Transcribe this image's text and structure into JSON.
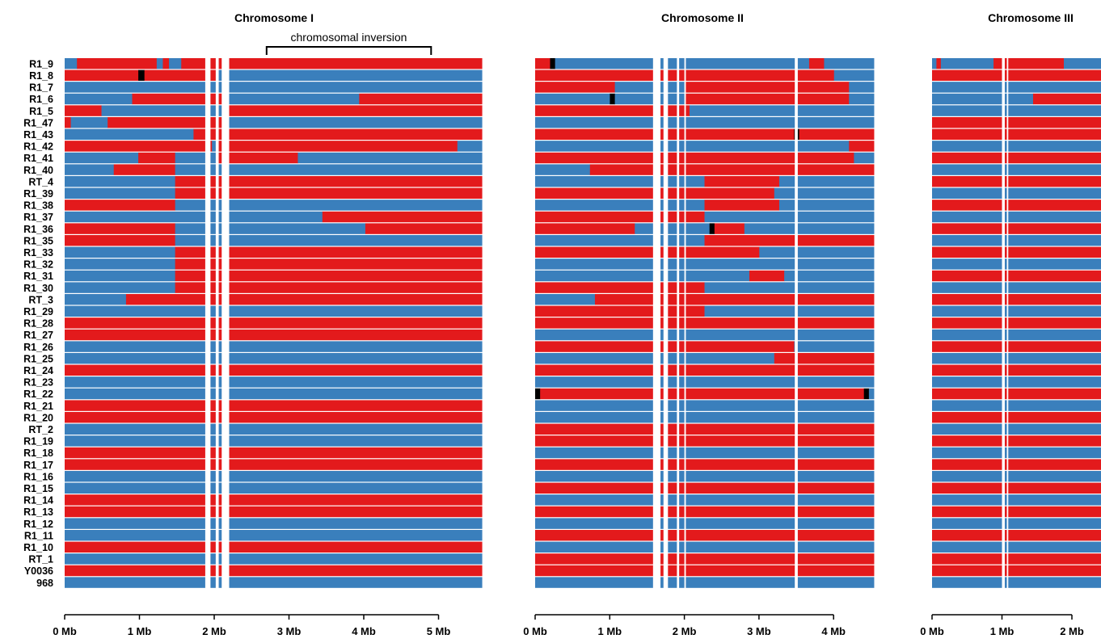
{
  "colors": {
    "parent_a": "#e31a1c",
    "parent_b": "#3a7fbc",
    "missing": "#000000",
    "background": "#ffffff"
  },
  "chart_data": {
    "type": "heatmap",
    "samples": [
      "R1_9",
      "R1_8",
      "R1_7",
      "R1_6",
      "R1_5",
      "R1_47",
      "R1_43",
      "R1_42",
      "R1_41",
      "R1_40",
      "RT_4",
      "R1_39",
      "R1_38",
      "R1_37",
      "R1_36",
      "R1_35",
      "R1_33",
      "R1_32",
      "R1_31",
      "R1_30",
      "RT_3",
      "R1_29",
      "R1_28",
      "R1_27",
      "R1_26",
      "R1_25",
      "R1_24",
      "R1_23",
      "R1_22",
      "R1_21",
      "R1_20",
      "RT_2",
      "R1_19",
      "R1_18",
      "R1_17",
      "R1_16",
      "R1_15",
      "R1_14",
      "R1_13",
      "R1_12",
      "R1_11",
      "R1_10",
      "RT_1",
      "Y0036",
      "968"
    ],
    "genotype_codes": {
      "R": "parent_a",
      "B": "parent_b",
      "K": "missing"
    },
    "panels": [
      {
        "title": "Chromosome I",
        "length_mb": 5.58,
        "xlim_mb": [
          0,
          5.58
        ],
        "ticks_mb": [
          0,
          1,
          2,
          3,
          4,
          5
        ],
        "tick_labels": [
          "0 Mb",
          "1 Mb",
          "2 Mb",
          "3 Mb",
          "4 Mb",
          "5 Mb"
        ],
        "annotation": {
          "label": "chromosomal inversion",
          "start_mb": 2.7,
          "end_mb": 4.9
        },
        "gaps_mb": [
          [
            1.88,
            1.95
          ],
          [
            2.02,
            2.06
          ],
          [
            2.1,
            2.2
          ]
        ],
        "blocks": [
          "BBRRRRRRRRRRRRRBRBBRRRRRRRRRRRRRRRRRRRRRRRRRRRRRRRRRRRRRRRRRRRRRRRRR",
          "RRRRRRRRRRRRKRRRRRRRRRRRRBBBBBBBBBBBBBBBBBBBBBBBBBBBBBBBBBBBBBBBBBBB",
          "BBBBBBBBBBBBBBBBBBBBBBBBBBBBBBBBBBBBBBBBBBBBBBBBBBBBBBBBBBBBBBBBBBBB",
          "BBBBBBBBBBBRRRRRRRRRRRRRRRBBBBBBBBBBBBBBBBBBBBBBRRRRRRRRRRRRRRRRRRRR",
          "RRRRRRBBBBBBBBBBBBBBBBBBBBRRRRRRRRRRRRRRRRRRRRRRRRRRRRRRRRRRRRRRRRRR",
          "RBBBBBBRRRRRRRRRRRRRRRRRRRBBBBBBBBBBBBBBBBBBBBBBBBBBBBBBBBBBBBBBBBBB",
          "BBBBBBBBBBBBBBBBBBBBBRRRRRRRRRRRRRRRRRRRRRRRRRRRRRRRRRRRRRRRRRRRRRRR",
          "RRRRRRRRRRRRRRRRRRRRRRRRBRRRRRRRRRRRRRRRRRRRRRRRRRRRRRRRRRRRRRRRBBBB",
          "BBBBBBBBBBBBRRRRRRBBBBBBBRRRRRRRRRRRRRBBBBBBBBBBBBBBBBBBBBBBBBBBBBBB",
          "BBBBBBBBRRRRRRRRRRBBBBBBBBBBBBBBBBBBBBBBBBBBBBBBBBBBBBBBBBBBBBBBBBBB",
          "BBBBBBBBBBBBBBBBBBRRRRRRRRRRRRRRRRRRRRRRRRRRRRRRRRRRRRRRRRRRRRRRRRRR",
          "BBBBBBBBBBBBBBBBBBRRRRRRRRRRRRRRRRRRRRRRRRRRRRRRRRRRRRRRRRRRRRRRRRRR",
          "RRRRRRRRRRRRRRRRRRBBBBBBBBBBBBBBBBBBBBBBBBBBBBBBBBBBBBBBBBBBBBBBBBBB",
          "BBBBBBBBBBBBBBBBBBBBBBBBBBBBBBBBBBBBBBBBBBRRRRRRRRRRRRRRRRRRRRRRRRRR",
          "RRRRRRRRRRRRRRRRRRBBBBBBBBBBBBBBBBBBBBBBBBBBBBBBBRRRRRRRRRRRRRRRRRRR",
          "RRRRRRRRRRRRRRRRRRBBBBBBBBBBBBBBBBBBBBBBBBBBBBBBBBBBBBBBBBBBBBBBBBBB",
          "BBBBBBBBBBBBBBBBBBRRRRRRRRRRRRRRRRRRRRRRRRRRRRRRRRRRRRRRRRRRRRRRRRRR",
          "BBBBBBBBBBBBBBBBBBRRRRRRRRRRRRRRRRRRRRRRRRRRRRRRRRRRRRRRRRRRRRRRRRRR",
          "BBBBBBBBBBBBBBBBBBRRRRRRRRRRRRRRRRRRRRRRRRRRRRRRRRRRRRRRRRRRRRRRRRRR",
          "BBBBBBBBBBBBBBBBBBRRRRRRRRRRRRRRRRRRRRRRRRRRRRRRRRRRRRRRRRRRRRRRRRRR",
          "BBBBBBBBBBRRRRRRRRRRRRRRRRRRRRRRRRRRRRRRRRRRRRRRRRRRRRRRRRRRRRRRRRRR",
          "BBBBBBBBBBBBBBBBBBBBBBBBBBBBBBBBBBBBBBBBBBBBBBBBBBBBBBBBBBBBBBBBBBBB",
          "RRRRRRRRRRRRRRRRRRRRRRRRRRRRRRRRRRRRRRRRRRRRRRRRRRRRRRRRRRRRRRRRRRRR",
          "RRRRRRRRRRRRRRRRRRRRRRRRRRRRRRRRRRRRRRRRRRRRRRRRRRRRRRRRRRRRRRRRRRRR",
          "BBBBBBBBBBBBBBBBBBBBBBBBBBBBBBBBBBBBBBBBBBBBBBBBBBBBBBBBBBBBBBBBBBBB",
          "BBBBBBBBBBBBBBBBBBBBBBBBBBBBBBBBBBBBBBBBBBBBBBBBBBBBBBBBBBBBBBBBBBBB",
          "RRRRRRRRRRRRRRRRRRRRRRRRRRRRRRRRRRRRRRRRRRRRRRRRRRRRRRRRRRRRRRRRRRRR",
          "BBBBBBBBBBBBBBBBBBBBBBBBBBBBBBBBBBBBBBBBBBBBBBBBBBBBBBBBBBBBBBBBBBBB",
          "BBBBBBBBBBBBBBBBBBBBBBBBBBBBBBBBBBBBBBBBBBBBBBBBBBBBBBBBBBBBBBBBBBBB",
          "RRRRRRRRRRRRRRRRRRRRRRRRRRRRRRRRRRRRRRRRRRRRRRRRRRRRRRRRRRRRRRRRRRRR",
          "RRRRRRRRRRRRRRRRRRRRRRRRRRRRRRRRRRRRRRRRRRRRRRRRRRRRRRRRRRRRRRRRRRRR",
          "BBBBBBBBBBBBBBBBBBBBBBBBBBBBBBBBBBBBBBBBBBBBBBBBBBBBBBBBBBBBBBBBBBBB",
          "BBBBBBBBBBBBBBBBBBBBBBBBBBBBBBBBBBBBBBBBBBBBBBBBBBBBBBBBBBBBBBBBBBBB",
          "RRRRRRRRRRRRRRRRRRRRRRRRRRRRRRRRRRRRRRRRRRRRRRRRRRRRRRRRRRRRRRRRRRRR",
          "RRRRRRRRRRRRRRRRRRRRRRRRRRRRRRRRRRRRRRRRRRRRRRRRRRRRRRRRRRRRRRRRRRRR",
          "BBBBBBBBBBBBBBBBBBBBBBBBBBBBBBBBBBBBBBBBBBBBBBBBBBBBBBBBBBBBBBBBBBBB",
          "BBBBBBBBBBBBBBBBBBBBBBBBBBBBBBBBBBBBBBBBBBBBBBBBBBBBBBBBBBBBBBBBBBBB",
          "RRRRRRRRRRRRRRRRRRRRRRRRRRRRRRRRRRRRRRRRRRRRRRRRRRRRRRRRRRRRRRRRRRRR",
          "RRRRRRRRRRRRRRRRRRRRRRRRRRRRRRRRRRRRRRRRRRRRRRRRRRRRRRRRRRRRRRRRRRRR",
          "BBBBBBBBBBBBBBBBBBBBBBBBBBBBBBBBBBBBBBBBBBBBBBBBBBBBBBBBBBBBBBBBBBBB",
          "BBBBBBBBBBBBBBBBBBBBBBBBBBBBBBBBBBBBBBBBBBBBBBBBBBBBBBBBBBBBBBBBBBBB",
          "RRRRRRRRRRRRRRRRRRRRRRRRRRRRRRRRRRRRRRRRRRRRRRRRRRRRRRRRRRRRRRRRRRRR",
          "BBBBBBBBBBBBBBBBBBBBBBBBBBBBBBBBBBBBBBBBBBBBBBBBBBBBBBBBBBBBBBBBBBBB",
          "RRRRRRRRRRRRRRRRRRRRRRRRRRRRRRRRRRRRRRRRRRRRRRRRRRRRRRRRRRRRRRRRRRRR",
          "BBBBBBBBBBBBBBBBBBBBBBBBBBBBBBBBBBBBBBBBBBBBBBBBBBBBBBBBBBBBBBBBBBBB"
        ]
      },
      {
        "title": "Chromosome II",
        "length_mb": 4.54,
        "xlim_mb": [
          0,
          4.54
        ],
        "ticks_mb": [
          0,
          1,
          2,
          3,
          4
        ],
        "tick_labels": [
          "0 Mb",
          "1 Mb",
          "2 Mb",
          "3 Mb",
          "4 Mb"
        ],
        "gaps_mb": [
          [
            1.58,
            1.68
          ],
          [
            1.72,
            1.78
          ],
          [
            1.9,
            1.93
          ],
          [
            2.0,
            2.02
          ],
          [
            3.48,
            3.52
          ]
        ],
        "blocks": [
          "RRRKBBBBBBBBBBBBBBBBBBBBBBBBBBBBBBBBBBBBBBBBBBBBBBBBBBBRRRBBBBBBBBBB",
          "RRRRRRRRRRRRRRRRRRRRRRRRRRRRRRRRRRRRRRRRRRRRRRRRRRRRRRRRRRRRBBBBBBBB",
          "RRRRRRRRRRRRRRRRBBBBBBBBBBBBBBRRRRRRRRRRRRRRRRRRRRRRRRRRRRRRRRRBBBBB",
          "BBBBBBBBBBBBBBBKBBBBBBBBBBBBBBRRRRRRRRRRRRRRRRRRRRRRRRRRRRRRRRRBBBBB",
          "RRRRRRRRRRRRRRRRRRRRRRRRRRRRRRRBBBBBBBBBBBBBBBBBBBBBBBBBBBBBBBBBBBBB",
          "BBBBBBBBBBBBBBBBBBBBBBBBBBBBBBBBBBBBBBBBBBBBBBBBBBBBBBBBBBBBBBBBBBBB",
          "RRRRRRRRRRRRRRRRRRRRRRRRRRRRRRRRRRRRRRRRRRRRRRRRRRRRKRRRRRRRRRRRRRRR",
          "BBBBBBBBBBBBBBBBBBBBBBBBBBBBBBBBBBBBBBBBBBBBBBBBBBBBBBBBBBBBBBBRRRRR",
          "RRRRRRRRRRRRRRRRRRRRRRRRRRRRRRRRRRRRRRRRRRRRRRRRRRRRRRRRRRRRRRRRBBBB",
          "BBBBBBBBBBBRRRRRRRRRRRRRRRRRRRRRRRRRRRRRRRRRRRRRRRRRRRRRRRRRRRRRRRRR",
          "BBBBBBBBBBBBBBBBBBBBBBBBBBBBBBBBBBRRRRRRRRRRRRRRRBBBBBBBBBBBBBBBBBBB",
          "RRRRRRRRRRRRRRRRRRRRRRRRRRRRRRRRRRRRRRRRRRRRRRRRBBBBBBBBBBBBBBBBBBBB",
          "BBBBBBBBBBBBBBBBBBBBBBBBBBBBBBBBBBRRRRRRRRRRRRRRRBBBBBBBBBBBBBBBBBBB",
          "RRRRRRRRRRRRRRRRRRRRRRRRRRRRRRRRRRBBBBBBBBBBBBBBBBBBBBBBBBBBBBBBBBBB",
          "RRRRRRRRRRRRRRRRRRRRBBBBBBBBBBBBBBBKRRRRRRBBBBBBBBBBBBBBBBBBBBBBBBBB",
          "BBBBBBBBBBBBBBBBBBBBBBBBBBBBBBBBBBRRRRRRRRRRRRRRRRRRRRRRRRRRRRRRRRRR",
          "RRRRRRRRRRRRRRRRRRRRRRRRRRRRRRRRRRRRRRRRRRRRRBBBBBBBBBBBBBBBBBBBBBBB",
          "BBBBBBBBBBBBBBBBBBBBBBBBBBBBBBBBBBBBBBBBBBBBBBBBBBBBBBBBBBBBBBBBBBBB",
          "BBBBBBBBBBBBBBBBBBBBBBBBBBBBBBBBBBBBBBBBBBBRRRRRRRBBBBBBBBBBBBBBBBBB",
          "RRRRRRRRRRRRRRRRRRRRRRRRRRRRRRRRRRBBBBBBBBBBBBBBBBBBBBBBBBBBBBBBBBBB",
          "BBBBBBBBBBBBRRRRRRRRRRRRRRRRRRRRRRRRRRRRRRRRRRRRRRRRRRRRRRRRRRRRRRRR",
          "RRRRRRRRRRRRRRRRRRRRRRRRRRRRRRRRRRBBBBBBBBBBBBBBBBBBBBBBBBBBBBBBBBBB",
          "RRRRRRRRRRRRRRRRRRRRRRRRRRRRRRRRRRRRRRRRRRRRRRRRRRRRRRRRRRRRRRRRRRRR",
          "BBBBBBBBBBBBBBBBBBBBBBBBBBBBBBBBBBBBBBBBBBBBBBBBBBBBBBBBBBBBBBBBBBBB",
          "RRRRRRRRRRRRRRRRRRRRRRRRRRRRRRRRRRRRRRRRRRRRRRRRRRRRBBBBBBBBBBBBBBBB",
          "BBBBBBBBBBBBBBBBBBBBBBBBBBBBBBBBBBBBBBBBBBBBBBBBRRRRRRRRRRRRRRRRRRRR",
          "RRRRRRRRRRRRRRRRRRRRRRRRRRRRRRRRRRRRRRRRRRRRRRRRRRRRRRRRRRRRRRRRRRRR",
          "BBBBBBBBBBBBBBBBBBBBBBBBBBBBBBBBBBBBBBBBBBBBBBBBBBBBBBBBBBBBBBBBBBBB",
          "KRRRRRRRRRRRRRRRRRRRRRRRRRRRRRRRRRRRRRRRRRRRRRRRRRRRRRRRRRRRRRRRRRKB",
          "BBBBBBBBBBBBBBBBBBBBBBBBBBBBBBBBBBBBBBBBBBBBBBBBBBBBBBBBBBBBBBBBBBBB",
          "BBBBBBBBBBBBBBBBBBBBBBBBBBBBBBBBBBBBBBBBBBBBBBBBBBBBBBBBBBBBBBBBBBBB",
          "RRRRRRRRRRRRRRRRRRRRRRRRRRRRRRRRRRRRRRRRRRRRRRRRRRRRRRRRRRRRRRRRRRRR",
          "RRRRRRRRRRRRRRRRRRRRRRRRRRRRRRRRRRRRRRRRRRRRRRRRRRRRRRRRRRRRRRRRRRRR",
          "BBBBBBBBBBBBBBBBBBBBBBBBBBBBBBBBBBBBBBBBBBBBBBBBBBBBBBBBBBBBBBBBBBBB",
          "RRRRRRRRRRRRRRRRRRRRRRRRRRRRRRRRRRRRRRRRRRRRRRRRRRRRRRRRRRRRRRRRRRRR",
          "BBBBBBBBBBBBBBBBBBBBBBBBBBBBBBBBBBBBBBBBBBBBBBBBBBBBBBBBBBBBBBBBBBBB",
          "RRRRRRRRRRRRRRRRRRRRRRRRRRRRRRRRRRRRRRRRRRRRRRRRRRRRRRRRRRRRRRRRRRRR",
          "BBBBBBBBBBBBBBBBBBBBBBBBBBBBBBBBBBBBBBBBBBBBBBBBBBBBBBBBBBBBBBBBBBBB",
          "RRRRRRRRRRRRRRRRRRRRRRRRRRRRRRRRRRRRRRRRRRRRRRRRRRRRRRRRRRRRRRRRRRRR",
          "BBBBBBBBBBBBBBBBBBBBBBBBBBBBBBBBBBBBBBBBBBBBBBBBBBBBBBBBBBBBBBBBBBBB",
          "RRRRRRRRRRRRRRRRRRRRRRRRRRRRRRRRRRRRRRRRRRRRRRRRRRRRRRRRRRRRRRRRRRRR",
          "BBBBBBBBBBBBBBBBBBBBBBBBBBBBBBBBBBBBBBBBBBBBBBBBBBBBBBBBBBBBBBBBBBBB",
          "RRRRRRRRRRRRRRRRRRRRRRRRRRRRRRRRRRRRRRRRRRRRRRRRRRRRRRRRRRRRRRRRRRRR",
          "RRRRRRRRRRRRRRRRRRRRRRRRRRRRRRRRRRRRRRRRRRRRRRRRRRRRRRRRRRRRRRRRRRRR",
          "BBBBBBBBBBBBBBBBBBBBBBBBBBBBBBBBBBBBBBBBBBBBBBBBBBBBBBBBBBBBBBBBBBBB"
        ]
      },
      {
        "title": "Chromosome III",
        "length_mb": 2.45,
        "xlim_mb": [
          0,
          2.45
        ],
        "ticks_mb": [
          0,
          1,
          2
        ],
        "tick_labels": [
          "0 Mb",
          "1 Mb",
          "2 Mb"
        ],
        "gaps_mb": [
          [
            1.0,
            1.04
          ],
          [
            1.07,
            1.09
          ]
        ],
        "blocks": [
          "BRBBBBBBBBBBBBRRRRRRRRRRRRRRRRBBBBBBBBB",
          "RRRRRRRRRRRRRRRRRRRRRRRRRRRRRRRRRRRRRRR",
          "BBBBBBBBBBBBBBBBBBBBBBBBBBBBBBBBBBBBBBB",
          "BBBBBBBBBBBBBBBBBBBBBBBRRRRRRRRRRRRRRRR",
          "BBBBBBBBBBBBBBBBBBBBBBBBBBBBBBBBBBBBBBB",
          "RRRRRRRRRRRRRRRRRRRRRRRRRRRRRRRRRRRRRRR",
          "RRRRRRRRRRRRRRRRRRRRRRRRRRRRRRRRRRRRRRR",
          "BBBBBBBBBBBBBBBBBBBBBBBBBBBBBBBBBBBBBBB",
          "RRRRRRRRRRRRRRRRRRRRRRRRRRRRRRRRRRRRRRR",
          "BBBBBBBBBBBBBBBBBBBBBBBBBBBBBBBBBBBBBBB",
          "RRRRRRRRRRRRRRRRRRRRRRRRRRRRRRRRRRRRRRR",
          "BBBBBBBBBBBBBBBBBBBBBBBBBBBBBBBBBBBBBBB",
          "RRRRRRRRRRRRRRRRRRRRRRRRRRRRRRRRRRRRRRR",
          "BBBBBBBBBBBBBBBBBBBBBBBBBBBBBBBBBBBBBBB",
          "RRRRRRRRRRRRRRRRRRRRRRRRRRRRRRRRRRRRRRR",
          "BBBBBBBBBBBBBBBBBBBBBBBBBBBBBBBBBBBBBBB",
          "RRRRRRRRRRRRRRRRRRRRRRRRRRRRRRRRRRRRRRR",
          "BBBBBBBBBBBBBBBBBBBBBBBBBBBBBBBBBBBBBBB",
          "RRRRRRRRRRRRRRRRRRRRRRRRRRRRRRRRRRRRRRR",
          "BBBBBBBBBBBBBBBBBBBBBBBBBBBBBBBBBBBBBBB",
          "RRRRRRRRRRRRRRRRRRRRRRRRRRRRRRRRRRRRRRR",
          "BBBBBBBBBBBBBBBBBBBBBBBBBBBBBBBBBBBBBBB",
          "RRRRRRRRRRRRRRRRRRRRRRRRRRRRRRRRRRRRRRR",
          "BBBBBBBBBBBBBBBBBBBBBBBBBBBBBBBBBBBBBBB",
          "RRRRRRRRRRRRRRRRRRRRRRRRRRRRRRRRRRRRRRR",
          "BBBBBBBBBBBBBBBBBBBBBBBBBBBBBBBBBBBBBBB",
          "RRRRRRRRRRRRRRRRRRRRRRRRRRRRRRRRRRRRRRR",
          "BBBBBBBBBBBBBBBBBBBBBBBBBBBBBBBBBBBBBBB",
          "RRRRRRRRRRRRRRRRRRRRRRRRRRRRRRRRRRRRRRR",
          "BBBBBBBBBBBBBBBBBBBBBBBBBBBBBBBBBBBBBBB",
          "RRRRRRRRRRRRRRRRRRRRRRRRRRRRRRRRRRRRRRR",
          "BBBBBBBBBBBBBBBBBBBBBBBBBBBBBBBBBBBBBBB",
          "RRRRRRRRRRRRRRRRRRRRRRRRRRRRRRRRRRRRRRR",
          "BBBBBBBBBBBBBBBBBBBBBBBBBBBBBBBBBBBBBBB",
          "RRRRRRRRRRRRRRRRRRRRRRRRRRRRRRRRRRRRRRR",
          "BBBBBBBBBBBBBBBBBBBBBBBBBBBBBBBBBBBBBBB",
          "RRRRRRRRRRRRRRRRRRRRRRRRRRRRRRRRRRRRRRR",
          "BBBBBBBBBBBBBBBBBBBBBBBBBBBBBBBBBBBBBBB",
          "RRRRRRRRRRRRRRRRRRRRRRRRRRRRRRRRRRRRRRR",
          "BBBBBBBBBBBBBBBBBBBBBBBBBBBBBBBBBBBBBBB",
          "RRRRRRRRRRRRRRRRRRRRRRRRRRRRRRRRRRRRRRR",
          "BBBBBBBBBBBBBBBBBBBBBBBBBBBBBBBBBBBBBBB",
          "RRRRRRRRRRRRRRRRRRRRRRRRRRRRRRRRRRRRRRR",
          "RRRRRRRRRRRRRRRRRRRRRRRRRRRRRRRRRRRRRRR",
          "BBBBBBBBBBBBBBBBBBBBBBBBBBBBBBBBBBBBBBB"
        ]
      }
    ]
  }
}
